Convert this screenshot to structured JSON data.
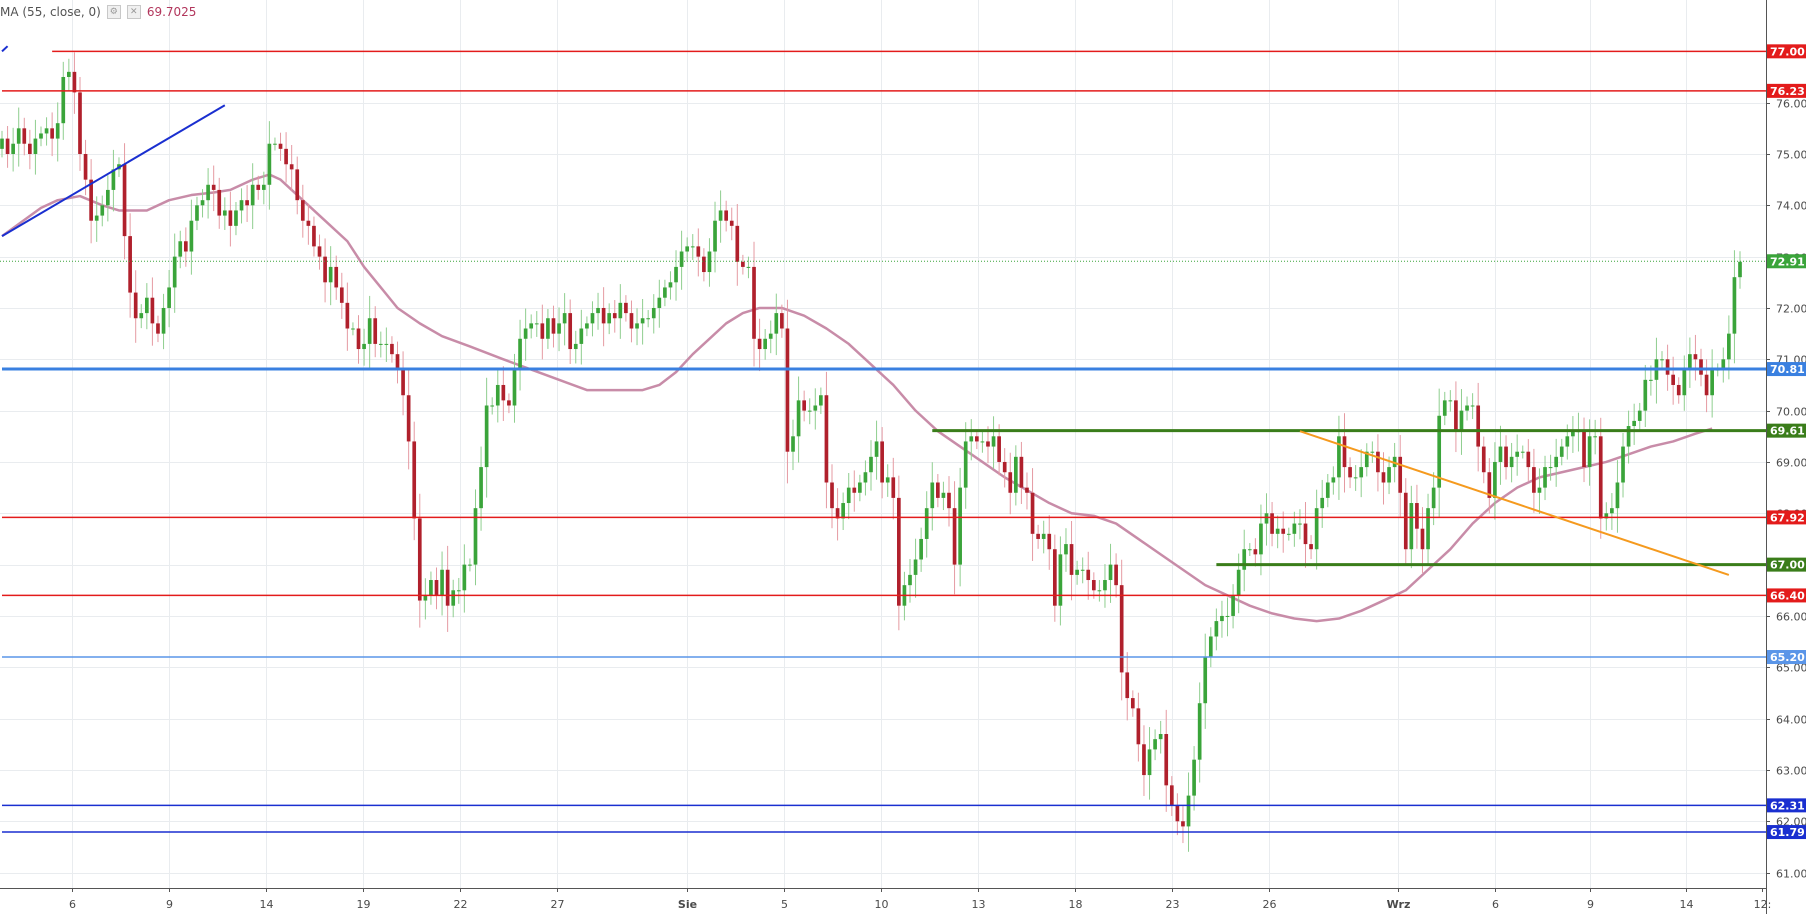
{
  "indicator": {
    "label": "MA (55, close, 0)",
    "value": "69.7025",
    "settings_icon": "gear-icon",
    "close_icon": "close-icon",
    "line_color": "#c88ca8"
  },
  "chart_data": {
    "type": "candlestick",
    "ylim": [
      60.7,
      78.0
    ],
    "y_ticks": [
      "61.00",
      "62.00",
      "63.00",
      "64.00",
      "65.00",
      "66.00",
      "67.00",
      "68.00",
      "69.00",
      "70.00",
      "71.00",
      "72.00",
      "73.00",
      "74.00",
      "75.00",
      "76.00"
    ],
    "x_ticks": [
      "6",
      "9",
      "14",
      "19",
      "22",
      "27",
      "Sie",
      "5",
      "10",
      "13",
      "18",
      "23",
      "26",
      "Wrz",
      "6",
      "9",
      "14",
      "12:"
    ],
    "grid": true,
    "last_price": 72.91,
    "up_color": "#3aa43a",
    "down_color": "#b0202c",
    "closes": [
      75.3,
      75.0,
      75.2,
      75.5,
      75.2,
      75.0,
      75.3,
      75.4,
      75.5,
      75.3,
      75.6,
      76.5,
      76.6,
      76.2,
      75.0,
      74.5,
      73.7,
      73.8,
      74.0,
      74.3,
      74.7,
      74.8,
      73.4,
      72.3,
      71.8,
      71.9,
      72.2,
      71.7,
      71.5,
      72.0,
      72.4,
      73.0,
      73.3,
      73.1,
      73.7,
      74.0,
      74.1,
      74.4,
      74.3,
      73.8,
      73.9,
      73.6,
      73.9,
      74.1,
      74.0,
      74.4,
      74.3,
      74.4,
      75.2,
      75.2,
      75.1,
      74.8,
      74.7,
      74.1,
      73.7,
      73.6,
      73.2,
      73.0,
      72.5,
      72.8,
      72.4,
      72.1,
      71.6,
      71.6,
      71.2,
      71.3,
      71.8,
      71.3,
      71.3,
      71.3,
      71.1,
      70.8,
      70.3,
      69.4,
      67.9,
      66.3,
      66.4,
      66.7,
      66.4,
      66.9,
      66.2,
      66.5,
      66.5,
      67.0,
      67.0,
      68.1,
      68.9,
      70.1,
      70.1,
      70.5,
      70.2,
      70.1,
      70.8,
      71.4,
      71.6,
      71.7,
      71.7,
      71.4,
      71.8,
      71.5,
      71.7,
      71.9,
      71.2,
      71.3,
      71.6,
      71.7,
      71.9,
      72.0,
      71.7,
      71.9,
      71.8,
      72.1,
      71.9,
      71.6,
      71.7,
      71.8,
      71.8,
      72.0,
      72.2,
      72.4,
      72.5,
      72.8,
      73.1,
      73.2,
      73.2,
      73.0,
      72.7,
      73.1,
      73.7,
      73.9,
      73.7,
      73.6,
      72.9,
      72.8,
      72.8,
      71.4,
      71.2,
      71.4,
      71.5,
      71.9,
      71.6,
      69.2,
      69.5,
      70.2,
      70.0,
      70.0,
      70.1,
      70.3,
      68.6,
      68.1,
      67.9,
      68.2,
      68.5,
      68.4,
      68.6,
      68.8,
      69.1,
      69.4,
      68.6,
      68.7,
      68.3,
      66.2,
      66.6,
      66.8,
      67.1,
      67.5,
      68.1,
      68.6,
      68.3,
      68.4,
      68.1,
      67.0,
      68.5,
      69.4,
      69.5,
      69.4,
      69.4,
      69.3,
      69.5,
      69.0,
      68.8,
      68.4,
      69.1,
      68.5,
      68.4,
      67.6,
      67.5,
      67.6,
      67.3,
      66.2,
      67.2,
      67.4,
      66.8,
      66.9,
      66.9,
      66.7,
      66.5,
      66.5,
      66.7,
      67.0,
      66.6,
      64.9,
      64.4,
      64.2,
      63.5,
      62.9,
      63.4,
      63.6,
      63.7,
      62.7,
      62.3,
      62.0,
      61.9,
      62.5,
      63.2,
      64.3,
      65.2,
      65.6,
      65.9,
      66.0,
      66.0,
      66.4,
      66.9,
      67.3,
      67.3,
      67.2,
      67.8,
      68.0,
      67.6,
      67.7,
      67.6,
      67.6,
      67.8,
      67.8,
      67.4,
      67.3,
      68.1,
      68.3,
      68.6,
      68.7,
      69.5,
      68.9,
      68.7,
      68.7,
      68.9,
      69.2,
      69.2,
      68.8,
      68.6,
      68.9,
      69.1,
      68.4,
      67.3,
      68.2,
      67.7,
      67.3,
      68.1,
      68.5,
      69.9,
      70.2,
      70.2,
      69.6,
      70.0,
      70.1,
      70.1,
      69.3,
      68.8,
      68.3,
      69.0,
      69.3,
      68.9,
      69.1,
      69.2,
      69.2,
      68.9,
      68.4,
      68.5,
      68.9,
      68.9,
      69.1,
      69.3,
      69.5,
      69.6,
      69.6,
      68.9,
      69.5,
      69.5,
      67.9,
      68.0,
      68.1,
      68.6,
      69.3,
      69.7,
      69.8,
      70.0,
      70.6,
      70.6,
      71.0,
      71.0,
      70.7,
      70.5,
      70.3,
      70.8,
      71.1,
      71.0,
      70.7,
      70.3,
      70.8,
      70.8,
      71.0,
      71.5,
      72.6,
      72.9
    ],
    "ma55": [
      {
        "x": 0,
        "y": 73.4
      },
      {
        "x": 7,
        "y": 73.95
      },
      {
        "x": 10,
        "y": 74.1
      },
      {
        "x": 14,
        "y": 74.18
      },
      {
        "x": 18,
        "y": 74.0
      },
      {
        "x": 21,
        "y": 73.9
      },
      {
        "x": 26,
        "y": 73.9
      },
      {
        "x": 30,
        "y": 74.1
      },
      {
        "x": 34,
        "y": 74.2
      },
      {
        "x": 38,
        "y": 74.25
      },
      {
        "x": 41,
        "y": 74.3
      },
      {
        "x": 45,
        "y": 74.5
      },
      {
        "x": 48,
        "y": 74.6
      },
      {
        "x": 50,
        "y": 74.5
      },
      {
        "x": 54,
        "y": 74.1
      },
      {
        "x": 58,
        "y": 73.7
      },
      {
        "x": 62,
        "y": 73.3
      },
      {
        "x": 65,
        "y": 72.8
      },
      {
        "x": 68,
        "y": 72.4
      },
      {
        "x": 71,
        "y": 72.0
      },
      {
        "x": 75,
        "y": 71.7
      },
      {
        "x": 79,
        "y": 71.45
      },
      {
        "x": 84,
        "y": 71.25
      },
      {
        "x": 90,
        "y": 71.0
      },
      {
        "x": 95,
        "y": 70.8
      },
      {
        "x": 100,
        "y": 70.6
      },
      {
        "x": 105,
        "y": 70.4
      },
      {
        "x": 110,
        "y": 70.4
      },
      {
        "x": 115,
        "y": 70.4
      },
      {
        "x": 118,
        "y": 70.5
      },
      {
        "x": 121,
        "y": 70.75
      },
      {
        "x": 124,
        "y": 71.1
      },
      {
        "x": 127,
        "y": 71.4
      },
      {
        "x": 130,
        "y": 71.7
      },
      {
        "x": 133,
        "y": 71.9
      },
      {
        "x": 136,
        "y": 72.0
      },
      {
        "x": 140,
        "y": 72.0
      },
      {
        "x": 144,
        "y": 71.85
      },
      {
        "x": 148,
        "y": 71.6
      },
      {
        "x": 152,
        "y": 71.3
      },
      {
        "x": 156,
        "y": 70.9
      },
      {
        "x": 160,
        "y": 70.5
      },
      {
        "x": 164,
        "y": 70.0
      },
      {
        "x": 168,
        "y": 69.6
      },
      {
        "x": 172,
        "y": 69.3
      },
      {
        "x": 176,
        "y": 69.0
      },
      {
        "x": 180,
        "y": 68.7
      },
      {
        "x": 184,
        "y": 68.45
      },
      {
        "x": 188,
        "y": 68.2
      },
      {
        "x": 192,
        "y": 68.0
      },
      {
        "x": 196,
        "y": 67.95
      },
      {
        "x": 200,
        "y": 67.8
      },
      {
        "x": 204,
        "y": 67.5
      },
      {
        "x": 208,
        "y": 67.2
      },
      {
        "x": 212,
        "y": 66.9
      },
      {
        "x": 216,
        "y": 66.6
      },
      {
        "x": 220,
        "y": 66.4
      },
      {
        "x": 224,
        "y": 66.2
      },
      {
        "x": 228,
        "y": 66.05
      },
      {
        "x": 232,
        "y": 65.95
      },
      {
        "x": 236,
        "y": 65.9
      },
      {
        "x": 240,
        "y": 65.95
      },
      {
        "x": 244,
        "y": 66.1
      },
      {
        "x": 248,
        "y": 66.3
      },
      {
        "x": 252,
        "y": 66.5
      },
      {
        "x": 256,
        "y": 66.9
      },
      {
        "x": 260,
        "y": 67.3
      },
      {
        "x": 264,
        "y": 67.8
      },
      {
        "x": 268,
        "y": 68.2
      },
      {
        "x": 272,
        "y": 68.5
      },
      {
        "x": 276,
        "y": 68.7
      },
      {
        "x": 280,
        "y": 68.8
      },
      {
        "x": 284,
        "y": 68.9
      },
      {
        "x": 288,
        "y": 69.0
      },
      {
        "x": 292,
        "y": 69.15
      },
      {
        "x": 296,
        "y": 69.3
      },
      {
        "x": 300,
        "y": 69.4
      },
      {
        "x": 304,
        "y": 69.55
      },
      {
        "x": 307,
        "y": 69.65
      }
    ],
    "hlines": [
      {
        "price": 77.0,
        "label": "77.00",
        "color": "#e31b1b",
        "width": 1.5,
        "x_from": 9
      },
      {
        "price": 76.23,
        "label": "76.23",
        "color": "#e31b1b",
        "width": 1.5,
        "x_from": 0
      },
      {
        "price": 70.81,
        "label": "70.81",
        "color": "#3a80e0",
        "width": 3,
        "x_from": 0
      },
      {
        "price": 69.61,
        "label": "69.61",
        "color": "#3a7d1a",
        "width": 3,
        "x_from": 167
      },
      {
        "price": 67.92,
        "label": "67.92",
        "color": "#e31b1b",
        "width": 1.5,
        "x_from": 0
      },
      {
        "price": 67.0,
        "label": "67.00",
        "color": "#3a7d1a",
        "width": 3,
        "x_from": 218
      },
      {
        "price": 66.4,
        "label": "66.40",
        "color": "#e31b1b",
        "width": 1.5,
        "x_from": 0
      },
      {
        "price": 65.2,
        "label": "65.20",
        "color": "#5a95e8",
        "width": 1.5,
        "x_from": 0
      },
      {
        "price": 62.31,
        "label": "62.31",
        "color": "#1a2fd0",
        "width": 1.5,
        "x_from": 0
      },
      {
        "price": 61.79,
        "label": "61.79",
        "color": "#1a2fd0",
        "width": 1.5,
        "x_from": 0
      }
    ],
    "trendlines": [
      {
        "x1": 0,
        "y1": 73.4,
        "x2": 40,
        "y2": 75.95,
        "color": "#1a2fd0"
      },
      {
        "x1": 0,
        "y1": 77.0,
        "x2": 1,
        "y2": 77.1,
        "color": "#1a2fd0"
      },
      {
        "x1": 233,
        "y1": 69.6,
        "x2": 310,
        "y2": 66.8,
        "color": "#f59a1e"
      }
    ],
    "last_price_label": {
      "price": 72.91,
      "label": "72.91",
      "color": "#3aa43a"
    }
  }
}
